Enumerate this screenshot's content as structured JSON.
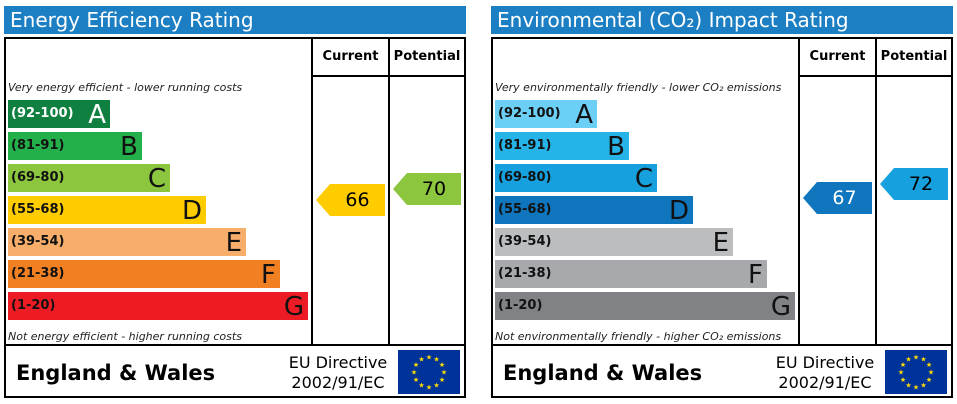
{
  "colors": {
    "title_bg": "#1d7fc3",
    "ee_bands": [
      "#0f8040",
      "#23b04b",
      "#8cc63f",
      "#ffcc00",
      "#f7ae6a",
      "#f08022",
      "#ed1c24"
    ],
    "ei_bands": [
      "#6ccff6",
      "#26b3e8",
      "#16a0dd",
      "#0f75bc",
      "#bbbdbf",
      "#a7a9ac",
      "#808285"
    ],
    "ee_current": "#ffcc00",
    "ee_potential": "#8cc63f",
    "ei_current": "#0f75bc",
    "ei_potential": "#16a0dd",
    "eu_flag": "#003399",
    "eu_stars": "#ffdd00"
  },
  "chart_data": [
    {
      "type": "bar",
      "title": "Energy Efficiency Rating",
      "columns": [
        "Current",
        "Potential"
      ],
      "top_note": "Very energy efficient - lower running costs",
      "bottom_note": "Not energy efficient - higher running costs",
      "bands": [
        {
          "range": "(92-100)",
          "letter": "A"
        },
        {
          "range": "(81-91)",
          "letter": "B"
        },
        {
          "range": "(69-80)",
          "letter": "C"
        },
        {
          "range": "(55-68)",
          "letter": "D"
        },
        {
          "range": "(39-54)",
          "letter": "E"
        },
        {
          "range": "(21-38)",
          "letter": "F"
        },
        {
          "range": "(1-20)",
          "letter": "G"
        }
      ],
      "current": 66,
      "potential": 70,
      "footer": {
        "country": "England & Wales",
        "directive_line1": "EU Directive",
        "directive_line2": "2002/91/EC"
      }
    },
    {
      "type": "bar",
      "title": "Environmental (CO₂) Impact Rating",
      "columns": [
        "Current",
        "Potential"
      ],
      "top_note": "Very environmentally friendly - lower CO₂ emissions",
      "bottom_note": "Not environmentally friendly - higher CO₂ emissions",
      "bands": [
        {
          "range": "(92-100)",
          "letter": "A"
        },
        {
          "range": "(81-91)",
          "letter": "B"
        },
        {
          "range": "(69-80)",
          "letter": "C"
        },
        {
          "range": "(55-68)",
          "letter": "D"
        },
        {
          "range": "(39-54)",
          "letter": "E"
        },
        {
          "range": "(21-38)",
          "letter": "F"
        },
        {
          "range": "(1-20)",
          "letter": "G"
        }
      ],
      "current": 67,
      "potential": 72,
      "footer": {
        "country": "England & Wales",
        "directive_line1": "EU Directive",
        "directive_line2": "2002/91/EC"
      }
    }
  ]
}
